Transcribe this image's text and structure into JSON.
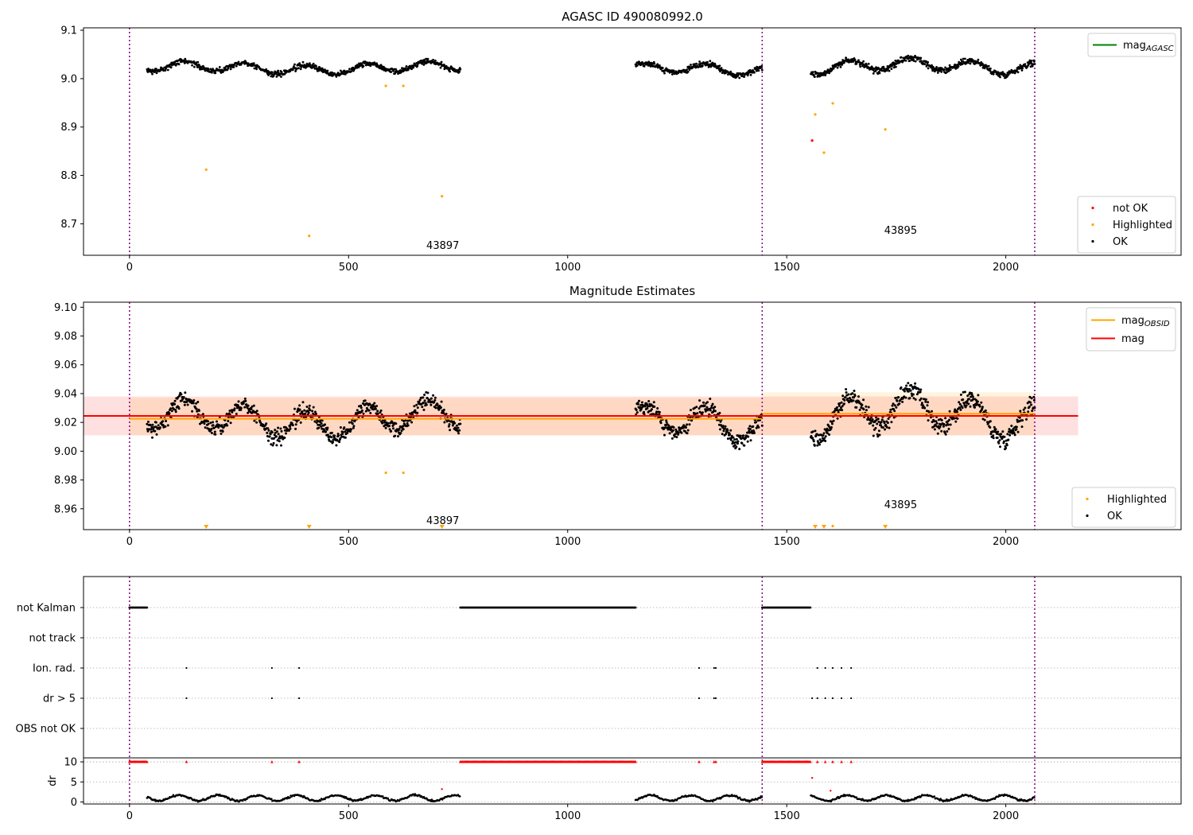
{
  "chart_data": [
    {
      "type": "scatter",
      "title": "AGASC ID 490080992.0",
      "xlim": [
        -105,
        2400
      ],
      "ylim": [
        8.635,
        9.105
      ],
      "xticks": [
        0,
        500,
        1000,
        1500,
        2000
      ],
      "yticks": [
        8.7,
        8.8,
        8.9,
        9.0,
        9.1
      ],
      "ytick_labels": [
        "8.7",
        "8.8",
        "8.9",
        "9.0",
        "9.1"
      ],
      "obsid_boundaries": [
        0,
        1444,
        2066
      ],
      "annotations": [
        {
          "text": "43897",
          "x": 715,
          "y": 8.655
        },
        {
          "text": "43895",
          "x": 1760,
          "y": 8.686
        }
      ],
      "ok_segments": [
        {
          "x_start": 40,
          "x_end": 755,
          "base": 9.022,
          "amplitude": 0.018
        },
        {
          "x_start": 1155,
          "x_end": 1444,
          "base": 9.018,
          "amplitude": 0.018
        },
        {
          "x_start": 1555,
          "x_end": 2066,
          "base": 9.025,
          "amplitude": 0.022
        }
      ],
      "series": [
        {
          "name": "not OK",
          "color": "#ff0000",
          "x": [
            1558
          ],
          "y": [
            8.872
          ]
        },
        {
          "name": "Highlighted",
          "color": "#ffa500",
          "x": [
            175,
            410,
            585,
            625,
            713,
            1565,
            1585,
            1605,
            1725
          ],
          "y": [
            8.812,
            8.675,
            8.985,
            8.985,
            8.757,
            8.926,
            8.847,
            8.949,
            8.895
          ]
        },
        {
          "name": "OK",
          "color": "#000000"
        }
      ],
      "legends": [
        {
          "position": "upper right",
          "entries": [
            {
              "label": "mag",
              "subscript": "AGASC",
              "style": "line",
              "color": "#008000"
            }
          ]
        },
        {
          "position": "lower right",
          "entries": [
            {
              "label": "not OK",
              "style": "dot",
              "color": "#ff0000"
            },
            {
              "label": "Highlighted",
              "style": "dot",
              "color": "#ffa500"
            },
            {
              "label": "OK",
              "style": "dot",
              "color": "#000000"
            }
          ]
        }
      ]
    },
    {
      "type": "scatter",
      "title": "Magnitude Estimates",
      "xlim": [
        -105,
        2400
      ],
      "ylim": [
        8.9455,
        9.1035
      ],
      "xticks": [
        0,
        500,
        1000,
        1500,
        2000
      ],
      "yticks": [
        8.96,
        8.98,
        9.0,
        9.02,
        9.04,
        9.06,
        9.08,
        9.1
      ],
      "ytick_labels": [
        "8.96",
        "8.98",
        "9.00",
        "9.02",
        "9.04",
        "9.06",
        "9.08",
        "9.10"
      ],
      "obsid_boundaries": [
        0,
        1444,
        2066
      ],
      "annotations": [
        {
          "text": "43897",
          "x": 715,
          "y": 8.9515
        },
        {
          "text": "43895",
          "x": 1760,
          "y": 8.9625
        }
      ],
      "mag": {
        "value": 9.0245,
        "lower": 9.011,
        "upper": 9.038,
        "x_start": -105,
        "x_end": 2165,
        "color": "#ff0000"
      },
      "mag_obsid": [
        {
          "x_start": 0,
          "x_end": 1444,
          "value": 9.0225,
          "lower": 9.011,
          "upper": 9.037,
          "color": "#ffa500"
        },
        {
          "x_start": 1444,
          "x_end": 2066,
          "value": 9.026,
          "lower": 9.011,
          "upper": 9.041,
          "color": "#ffa500"
        }
      ],
      "ok_segments": [
        {
          "x_start": 40,
          "x_end": 755,
          "base": 9.022,
          "amplitude": 0.018
        },
        {
          "x_start": 1155,
          "x_end": 1444,
          "base": 9.018,
          "amplitude": 0.018
        },
        {
          "x_start": 1555,
          "x_end": 2066,
          "base": 9.025,
          "amplitude": 0.022
        }
      ],
      "series": [
        {
          "name": "Highlighted",
          "color": "#ffa500",
          "x": [
            585,
            625
          ],
          "y": [
            8.985,
            8.985
          ]
        },
        {
          "name": "Highlighted (below axis)",
          "color": "#ffa500",
          "marker": "triangle-down",
          "x": [
            175,
            410,
            713,
            1565,
            1585,
            1725
          ]
        },
        {
          "name": "Highlighted edge",
          "color": "#ffa500",
          "x": [
            1605
          ],
          "y": [
            8.948
          ]
        },
        {
          "name": "OK",
          "color": "#000000"
        }
      ],
      "legends": [
        {
          "position": "upper right",
          "entries": [
            {
              "label": "mag",
              "subscript": "OBSID",
              "style": "line",
              "color": "#ffa500"
            },
            {
              "label": "mag",
              "subscript": "",
              "style": "line",
              "color": "#ff0000"
            }
          ]
        },
        {
          "position": "lower right",
          "entries": [
            {
              "label": "Highlighted",
              "style": "dot",
              "color": "#ffa500"
            },
            {
              "label": "OK",
              "style": "dot",
              "color": "#000000"
            }
          ]
        }
      ]
    },
    {
      "type": "scatter",
      "title": "",
      "xlim": [
        -105,
        2400
      ],
      "xticks": [
        0,
        500,
        1000,
        1500,
        2000
      ],
      "flag_rows": [
        "not Kalman",
        "not track",
        "Ion. rad.",
        "dr > 5",
        "OBS not OK"
      ],
      "obsid_boundaries": [
        0,
        1444,
        2066
      ],
      "flags": {
        "not Kalman": [
          [
            0,
            40
          ],
          [
            755,
            1155
          ],
          [
            1444,
            1555
          ]
        ],
        "not track": [],
        "Ion. rad.": [
          130,
          325,
          387,
          1300,
          1334,
          1338,
          1570,
          1588,
          1605,
          1625,
          1647
        ],
        "dr > 5": [
          130,
          325,
          387,
          1300,
          1334,
          1338,
          1558,
          1570,
          1588,
          1605,
          1625,
          1647
        ],
        "OBS not OK": []
      },
      "dr": {
        "ylabel": "dr",
        "ylim": [
          -0.5,
          11
        ],
        "yticks": [
          0,
          5,
          10
        ],
        "ytick_labels": [
          "0",
          "5",
          "10"
        ],
        "segments": [
          [
            40,
            755
          ],
          [
            1155,
            1444
          ],
          [
            1555,
            2066
          ]
        ],
        "clipped_x_ranges": [
          [
            0,
            40
          ],
          [
            755,
            1155
          ],
          [
            1444,
            1555
          ]
        ],
        "clipped_x_points": [
          130,
          325,
          387,
          1300,
          1334,
          1338,
          1570,
          1588,
          1605,
          1625,
          1647
        ],
        "clipped_value": 10,
        "outliers": [
          {
            "x": 713,
            "y": 3.2
          },
          {
            "x": 1558,
            "y": 6.0
          },
          {
            "x": 1600,
            "y": 2.8
          }
        ]
      }
    }
  ]
}
